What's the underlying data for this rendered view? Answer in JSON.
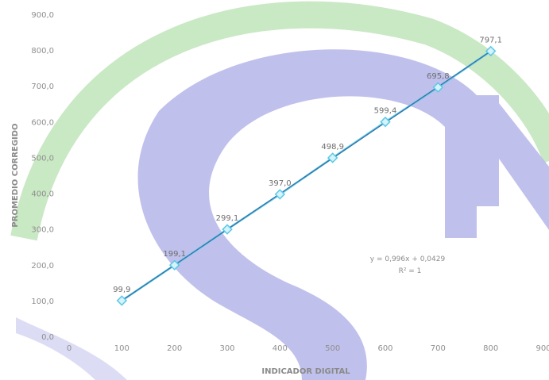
{
  "chart_data": {
    "type": "scatter",
    "title": "",
    "xlabel": "INDICADOR DIGITAL",
    "ylabel": "PROMEDIO CORREGIDO",
    "xlim": [
      0,
      900
    ],
    "ylim": [
      0,
      900
    ],
    "x_ticks": [
      0,
      100,
      200,
      300,
      400,
      500,
      600,
      700,
      800,
      900
    ],
    "x_tick_labels": [
      "0",
      "100",
      "200",
      "300",
      "400",
      "500",
      "600",
      "700",
      "800",
      "900"
    ],
    "y_ticks": [
      0,
      100,
      200,
      300,
      400,
      500,
      600,
      700,
      800,
      900
    ],
    "y_tick_labels": [
      "0,0",
      "100,0",
      "200,0",
      "300,0",
      "400,0",
      "500,0",
      "600,0",
      "700,0",
      "800,0",
      "900,0"
    ],
    "grid": false,
    "series": [
      {
        "x": [
          100,
          200,
          300,
          400,
          500,
          600,
          700,
          800
        ],
        "y": [
          99.9,
          199.1,
          299.1,
          397.0,
          498.9,
          599.4,
          695.8,
          797.1
        ],
        "labels": [
          "99,9",
          "199,1",
          "299,1",
          "397,0",
          "498,9",
          "599,4",
          "695,8",
          "797,1"
        ],
        "color": "#5bc8e6"
      }
    ],
    "trendline": {
      "slope": 0.996,
      "intercept": 0.0429,
      "color": "#2f5f9a",
      "equation": "y = 0,996x + 0,0429",
      "r2": "R² = 1"
    }
  }
}
